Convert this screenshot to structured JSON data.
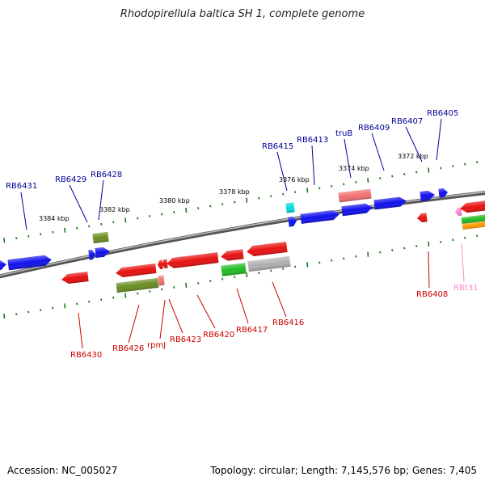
{
  "title": "Rhodopirellula baltica SH 1, complete genome",
  "footer": {
    "accession": "Accession: NC_005027",
    "summary": "Topology: circular; Length: 7,145,576 bp; Genes: 7,405"
  },
  "scale_labels": [
    "3384 kbp",
    "3382 kbp",
    "3380 kbp",
    "3378 kbp",
    "3376 kbp",
    "3374 kbp",
    "3372 kbp"
  ],
  "colors": {
    "forward": "#1010ee",
    "reverse": "#e81010",
    "leader_forward": "#000099",
    "leader_reverse": "#cc0000",
    "olive": "#6b8e23",
    "green": "#22bb22",
    "gray": "#b0b0b0",
    "cyan": "#00dddd",
    "pink": "#f07070",
    "trna": "#ff88cc",
    "orange": "#ff9900",
    "tick": "#1a7a1a",
    "backbone": "#777777"
  },
  "gene_labels": [
    {
      "text": "RB6431",
      "strand": "top"
    },
    {
      "text": "RB6429",
      "strand": "top"
    },
    {
      "text": "RB6428",
      "strand": "top"
    },
    {
      "text": "RB6415",
      "strand": "top"
    },
    {
      "text": "RB6413",
      "strand": "top"
    },
    {
      "text": "truB",
      "strand": "top"
    },
    {
      "text": "RB6409",
      "strand": "top"
    },
    {
      "text": "RB6407",
      "strand": "top"
    },
    {
      "text": "RB6405",
      "strand": "top"
    },
    {
      "text": "RB6430",
      "strand": "bottom"
    },
    {
      "text": "RB6426",
      "strand": "bottom"
    },
    {
      "text": "rpmJ",
      "strand": "bottom"
    },
    {
      "text": "RB6423",
      "strand": "bottom"
    },
    {
      "text": "RB6420",
      "strand": "bottom"
    },
    {
      "text": "RB6417",
      "strand": "bottom"
    },
    {
      "text": "RB6416",
      "strand": "bottom"
    },
    {
      "text": "RB6408",
      "strand": "bottom"
    },
    {
      "text": "RBt31",
      "strand": "bottom"
    }
  ]
}
